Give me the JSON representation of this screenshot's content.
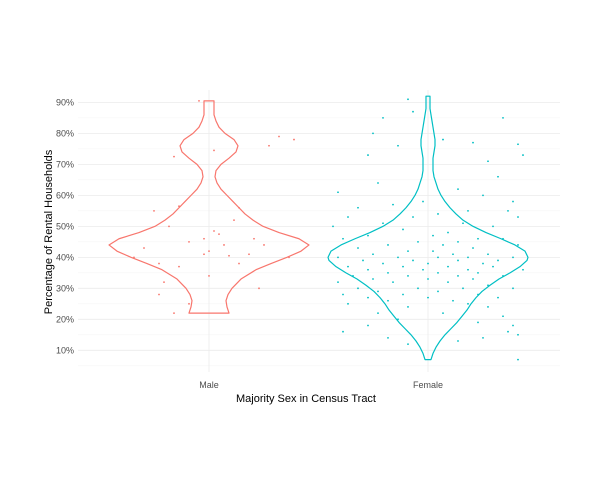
{
  "chart_data": {
    "type": "violin",
    "xlabel": "Majority Sex in Census Tract",
    "ylabel": "Percentage of Rental Households",
    "categories": [
      "Male",
      "Female"
    ],
    "ylim": [
      3,
      94
    ],
    "yticks": [
      10,
      20,
      30,
      40,
      50,
      60,
      70,
      80,
      90
    ],
    "ytick_format": "{v}%",
    "grid": true,
    "legend": "none",
    "colors": {
      "Male": "#f8766d",
      "Female": "#00bfc4"
    },
    "violins": [
      {
        "category": "Male",
        "range": [
          22,
          90.5
        ],
        "profile": [
          [
            22,
            0.2
          ],
          [
            24,
            0.18
          ],
          [
            26,
            0.17
          ],
          [
            28,
            0.19
          ],
          [
            30,
            0.23
          ],
          [
            33,
            0.32
          ],
          [
            36,
            0.47
          ],
          [
            38,
            0.62
          ],
          [
            40,
            0.78
          ],
          [
            42,
            0.92
          ],
          [
            44,
            1.0
          ],
          [
            46,
            0.9
          ],
          [
            48,
            0.7
          ],
          [
            50,
            0.54
          ],
          [
            52,
            0.44
          ],
          [
            54,
            0.36
          ],
          [
            56,
            0.3
          ],
          [
            58,
            0.24
          ],
          [
            60,
            0.18
          ],
          [
            62,
            0.12
          ],
          [
            64,
            0.08
          ],
          [
            66,
            0.06
          ],
          [
            68,
            0.07
          ],
          [
            70,
            0.12
          ],
          [
            72,
            0.2
          ],
          [
            74,
            0.27
          ],
          [
            76,
            0.29
          ],
          [
            78,
            0.25
          ],
          [
            80,
            0.16
          ],
          [
            82,
            0.1
          ],
          [
            84,
            0.07
          ],
          [
            86,
            0.05
          ],
          [
            88,
            0.05
          ],
          [
            90,
            0.05
          ],
          [
            90.5,
            0.05
          ]
        ],
        "points": [
          [
            -0.35,
            72.5
          ],
          [
            0.85,
            78
          ],
          [
            0.6,
            76
          ],
          [
            0.7,
            79
          ],
          [
            0.05,
            74.5
          ],
          [
            -0.1,
            90.5
          ],
          [
            0.3,
            56
          ],
          [
            -0.3,
            56.5
          ],
          [
            -0.55,
            55
          ],
          [
            0.25,
            52
          ],
          [
            -0.4,
            50
          ],
          [
            0.05,
            48.5
          ],
          [
            -0.2,
            45
          ],
          [
            0.45,
            46
          ],
          [
            0.1,
            47.5
          ],
          [
            0.15,
            44
          ],
          [
            -0.05,
            41
          ],
          [
            0.0,
            42
          ],
          [
            0.2,
            40.5
          ],
          [
            0.55,
            44
          ],
          [
            -0.65,
            43
          ],
          [
            -0.75,
            40
          ],
          [
            0.8,
            40
          ],
          [
            -0.5,
            38
          ],
          [
            0.3,
            38
          ],
          [
            -0.3,
            37
          ],
          [
            0.0,
            34
          ],
          [
            -0.5,
            28
          ],
          [
            0.5,
            30
          ],
          [
            -0.45,
            32
          ],
          [
            -0.2,
            25
          ],
          [
            -0.35,
            22
          ],
          [
            -0.05,
            46
          ],
          [
            0.4,
            41
          ]
        ]
      },
      {
        "category": "Female",
        "range": [
          7,
          92
        ],
        "profile": [
          [
            7,
            0.03
          ],
          [
            9,
            0.05
          ],
          [
            11,
            0.08
          ],
          [
            13,
            0.12
          ],
          [
            15,
            0.17
          ],
          [
            17,
            0.23
          ],
          [
            19,
            0.29
          ],
          [
            21,
            0.34
          ],
          [
            23,
            0.39
          ],
          [
            25,
            0.43
          ],
          [
            27,
            0.48
          ],
          [
            29,
            0.54
          ],
          [
            31,
            0.62
          ],
          [
            33,
            0.71
          ],
          [
            35,
            0.82
          ],
          [
            37,
            0.92
          ],
          [
            39,
            0.99
          ],
          [
            40,
            1.0
          ],
          [
            42,
            0.97
          ],
          [
            44,
            0.87
          ],
          [
            46,
            0.73
          ],
          [
            48,
            0.58
          ],
          [
            50,
            0.45
          ],
          [
            52,
            0.35
          ],
          [
            54,
            0.28
          ],
          [
            56,
            0.22
          ],
          [
            58,
            0.17
          ],
          [
            60,
            0.13
          ],
          [
            62,
            0.1
          ],
          [
            64,
            0.08
          ],
          [
            66,
            0.06
          ],
          [
            68,
            0.05
          ],
          [
            70,
            0.05
          ],
          [
            72,
            0.05
          ],
          [
            74,
            0.06
          ],
          [
            76,
            0.07
          ],
          [
            78,
            0.07
          ],
          [
            80,
            0.06
          ],
          [
            82,
            0.05
          ],
          [
            84,
            0.04
          ],
          [
            86,
            0.03
          ],
          [
            88,
            0.02
          ],
          [
            90,
            0.02
          ],
          [
            92,
            0.02
          ]
        ],
        "points": [
          [
            -0.55,
            80
          ],
          [
            -0.45,
            85
          ],
          [
            -0.2,
            91
          ],
          [
            -0.15,
            87
          ],
          [
            0.15,
            78
          ],
          [
            0.45,
            77
          ],
          [
            0.75,
            85
          ],
          [
            0.9,
            76.5
          ],
          [
            0.95,
            73
          ],
          [
            -0.3,
            76
          ],
          [
            0.6,
            71
          ],
          [
            -0.6,
            73
          ],
          [
            0.7,
            66
          ],
          [
            -0.5,
            64
          ],
          [
            0.3,
            62
          ],
          [
            0.55,
            60
          ],
          [
            -0.9,
            61
          ],
          [
            0.85,
            58
          ],
          [
            -0.35,
            57
          ],
          [
            -0.05,
            58
          ],
          [
            0.4,
            55
          ],
          [
            0.9,
            53
          ],
          [
            0.8,
            55
          ],
          [
            -0.7,
            56
          ],
          [
            -0.8,
            53
          ],
          [
            -0.15,
            53
          ],
          [
            0.1,
            54
          ],
          [
            0.35,
            51
          ],
          [
            -0.45,
            51
          ],
          [
            -0.95,
            50
          ],
          [
            0.65,
            50
          ],
          [
            -0.25,
            49
          ],
          [
            0.2,
            48
          ],
          [
            0.05,
            47
          ],
          [
            -0.6,
            47
          ],
          [
            0.5,
            46
          ],
          [
            -0.85,
            46
          ],
          [
            0.75,
            46
          ],
          [
            -0.1,
            45
          ],
          [
            0.3,
            45
          ],
          [
            -0.4,
            44
          ],
          [
            0.15,
            44
          ],
          [
            -0.7,
            43
          ],
          [
            0.45,
            43
          ],
          [
            0.9,
            44
          ],
          [
            -0.2,
            42
          ],
          [
            0.05,
            42
          ],
          [
            -0.55,
            41
          ],
          [
            0.6,
            41
          ],
          [
            0.25,
            41
          ],
          [
            -0.9,
            40
          ],
          [
            -0.3,
            40
          ],
          [
            0.1,
            40
          ],
          [
            0.4,
            40
          ],
          [
            0.85,
            40
          ],
          [
            -0.65,
            39
          ],
          [
            -0.15,
            39
          ],
          [
            0.3,
            39
          ],
          [
            0.7,
            39
          ],
          [
            -0.45,
            38
          ],
          [
            0.0,
            38
          ],
          [
            0.55,
            38
          ],
          [
            -0.8,
            37
          ],
          [
            -0.25,
            37
          ],
          [
            0.2,
            37
          ],
          [
            0.65,
            37
          ],
          [
            -0.6,
            36
          ],
          [
            -0.05,
            36
          ],
          [
            0.4,
            36
          ],
          [
            0.95,
            36
          ],
          [
            -0.4,
            35
          ],
          [
            0.1,
            35
          ],
          [
            0.5,
            35
          ],
          [
            -0.75,
            34
          ],
          [
            -0.2,
            34
          ],
          [
            0.3,
            34
          ],
          [
            0.75,
            34
          ],
          [
            -0.55,
            33
          ],
          [
            0.0,
            33
          ],
          [
            0.45,
            33
          ],
          [
            -0.9,
            32
          ],
          [
            -0.35,
            32
          ],
          [
            0.2,
            32
          ],
          [
            0.6,
            31
          ],
          [
            -0.7,
            30
          ],
          [
            -0.1,
            30
          ],
          [
            0.35,
            30
          ],
          [
            0.85,
            30
          ],
          [
            -0.5,
            29
          ],
          [
            0.1,
            29
          ],
          [
            -0.85,
            28
          ],
          [
            -0.25,
            28
          ],
          [
            0.5,
            28
          ],
          [
            -0.6,
            27
          ],
          [
            0.0,
            27
          ],
          [
            0.7,
            27
          ],
          [
            -0.4,
            26
          ],
          [
            0.25,
            26
          ],
          [
            -0.8,
            25
          ],
          [
            0.4,
            25
          ],
          [
            -0.2,
            24
          ],
          [
            0.6,
            24
          ],
          [
            -0.5,
            22
          ],
          [
            0.15,
            22
          ],
          [
            0.75,
            21
          ],
          [
            -0.3,
            20
          ],
          [
            0.5,
            19
          ],
          [
            0.85,
            18
          ],
          [
            -0.6,
            18
          ],
          [
            0.8,
            16
          ],
          [
            -0.85,
            16
          ],
          [
            0.9,
            15
          ],
          [
            -0.4,
            14
          ],
          [
            0.55,
            14
          ],
          [
            0.3,
            13
          ],
          [
            -0.2,
            12
          ],
          [
            0.9,
            7
          ]
        ]
      }
    ]
  }
}
